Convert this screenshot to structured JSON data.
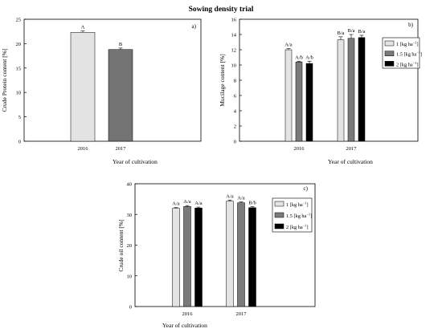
{
  "title": "Sowing density trial",
  "legend_unit": "[kg ha",
  "legend_exp": "−1",
  "legend_close": "]",
  "chart_data": [
    {
      "type": "bar",
      "panel": "a)",
      "xlabel": "Year of cultivation",
      "ylabel": "Crude Protein content [%]",
      "ylim": [
        0,
        25
      ],
      "yticks": [
        0,
        5,
        10,
        15,
        20,
        25
      ],
      "categories": [
        "2016",
        "2017"
      ],
      "series": [
        {
          "color": "#e3e3e3",
          "values": [
            22.3,
            18.8
          ],
          "errors": [
            0.3,
            0.3
          ],
          "labels": [
            "A",
            "B"
          ]
        },
        {
          "color": "#737373",
          "values": [
            null,
            18.8
          ],
          "errors": [
            0,
            0
          ],
          "labels": [
            "",
            ""
          ]
        }
      ],
      "bar_colors": [
        "#e3e3e3",
        "#737373"
      ],
      "legend": null,
      "grid": false
    },
    {
      "type": "bar",
      "panel": "b)",
      "xlabel": "Year of cultivation",
      "ylabel": "Mucilage content [%]",
      "ylim": [
        0,
        16
      ],
      "yticks": [
        0,
        2,
        4,
        6,
        8,
        10,
        12,
        14,
        16
      ],
      "categories": [
        "2016",
        "2017"
      ],
      "series": [
        {
          "name": "1",
          "color": "#e3e3e3",
          "values": [
            12.0,
            13.3
          ],
          "errors": [
            0.15,
            0.4
          ],
          "labels": [
            "A/a",
            "B/a"
          ]
        },
        {
          "name": "1.5",
          "color": "#7a7a7a",
          "values": [
            10.4,
            13.5
          ],
          "errors": [
            0.1,
            0.5
          ],
          "labels": [
            "A/b",
            "B/a"
          ]
        },
        {
          "name": "2",
          "color": "#000000",
          "values": [
            10.2,
            13.6
          ],
          "errors": [
            0.3,
            0.3
          ],
          "labels": [
            "A/b",
            "B/a"
          ]
        }
      ],
      "legend": "top-right",
      "grid": false
    },
    {
      "type": "bar",
      "panel": "c)",
      "xlabel": "Year of cultivation",
      "ylabel": "Crude oil content [%]",
      "ylim": [
        0,
        40
      ],
      "yticks": [
        0,
        10,
        20,
        30,
        40
      ],
      "categories": [
        "2016",
        "2017"
      ],
      "series": [
        {
          "name": "1",
          "color": "#e3e3e3",
          "values": [
            32.0,
            34.3
          ],
          "errors": [
            0.3,
            0.4
          ],
          "labels": [
            "A/a",
            "A/a"
          ]
        },
        {
          "name": "1.5",
          "color": "#7a7a7a",
          "values": [
            32.6,
            33.8
          ],
          "errors": [
            0.3,
            0.3
          ],
          "labels": [
            "A/a",
            "A/a"
          ]
        },
        {
          "name": "2",
          "color": "#000000",
          "values": [
            32.1,
            32.2
          ],
          "errors": [
            0.3,
            0.3
          ],
          "labels": [
            "A/a",
            "B/b"
          ]
        }
      ],
      "legend": "top-right",
      "grid": false
    }
  ]
}
